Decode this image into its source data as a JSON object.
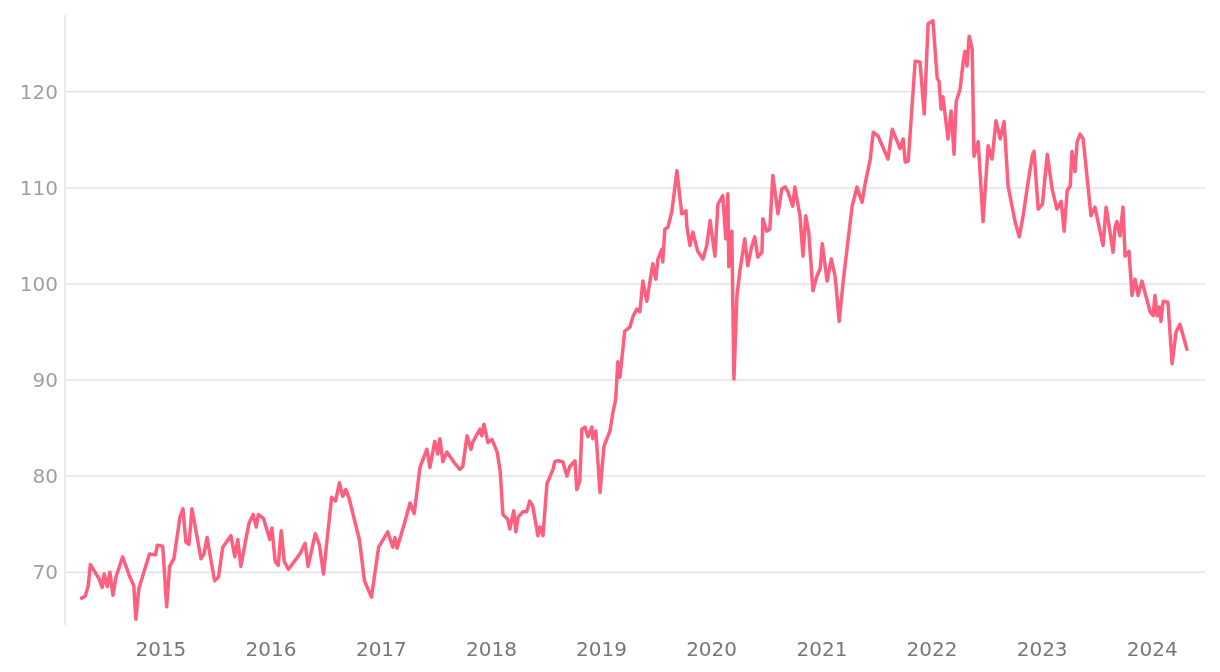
{
  "chart_data": {
    "type": "line",
    "xlim": [
      "2014-02-17",
      "2024-06-24"
    ],
    "xticks": [
      "2015",
      "2016",
      "2017",
      "2018",
      "2019",
      "2020",
      "2021",
      "2022",
      "2023",
      "2024"
    ],
    "ylim": [
      64.5,
      128
    ],
    "yticks": [
      70,
      80,
      90,
      100,
      110,
      120
    ],
    "grid": "y",
    "series": [
      {
        "color": "#ff5f7e",
        "x": [
          "2014-04-13",
          "2014-04-25",
          "2014-05-05",
          "2014-05-12",
          "2014-06-10",
          "2014-06-20",
          "2014-06-27",
          "2014-07-07",
          "2014-07-16",
          "2014-07-26",
          "2014-08-05",
          "2014-08-27",
          "2014-09-20",
          "2014-10-03",
          "2014-10-10",
          "2014-10-20",
          "2014-11-24",
          "2014-12-14",
          "2014-12-20",
          "2015-01-07",
          "2015-01-20",
          "2015-01-30",
          "2015-02-13",
          "2015-03-05",
          "2015-03-15",
          "2015-03-25",
          "2015-04-04",
          "2015-04-14",
          "2015-05-14",
          "2015-05-24",
          "2015-06-03",
          "2015-06-28",
          "2015-07-11",
          "2015-07-25",
          "2015-08-21",
          "2015-09-03",
          "2015-09-13",
          "2015-09-23",
          "2015-10-20",
          "2015-11-03",
          "2015-11-13",
          "2015-11-20",
          "2015-12-07",
          "2015-12-28",
          "2016-01-04",
          "2016-01-15",
          "2016-01-25",
          "2016-02-04",
          "2016-02-14",
          "2016-02-28",
          "2016-04-06",
          "2016-04-23",
          "2016-05-03",
          "2016-05-27",
          "2016-06-09",
          "2016-06-23",
          "2016-07-20",
          "2016-08-02",
          "2016-08-15",
          "2016-08-26",
          "2016-09-05",
          "2016-09-15",
          "2016-10-20",
          "2016-11-06",
          "2016-11-29",
          "2016-12-23",
          "2017-01-22",
          "2017-02-08",
          "2017-02-15",
          "2017-02-22",
          "2017-03-17",
          "2017-04-06",
          "2017-04-20",
          "2017-05-09",
          "2017-06-01",
          "2017-06-11",
          "2017-06-27",
          "2017-07-07",
          "2017-07-14",
          "2017-07-24",
          "2017-08-06",
          "2017-09-02",
          "2017-09-18",
          "2017-09-28",
          "2017-10-12",
          "2017-10-25",
          "2017-11-01",
          "2017-11-24",
          "2017-11-30",
          "2017-12-07",
          "2017-12-20",
          "2018-01-03",
          "2018-01-20",
          "2018-01-30",
          "2018-02-08",
          "2018-02-24",
          "2018-03-03",
          "2018-03-16",
          "2018-03-23",
          "2018-03-30",
          "2018-04-15",
          "2018-04-28",
          "2018-05-08",
          "2018-05-18",
          "2018-06-04",
          "2018-06-11",
          "2018-06-21",
          "2018-07-04",
          "2018-07-24",
          "2018-07-30",
          "2018-08-09",
          "2018-08-26",
          "2018-09-08",
          "2018-09-18",
          "2018-10-05",
          "2018-10-11",
          "2018-10-21",
          "2018-10-28",
          "2018-11-07",
          "2018-11-17",
          "2018-11-30",
          "2018-12-03",
          "2018-12-13",
          "2018-12-27",
          "2019-01-09",
          "2019-01-29",
          "2019-02-07",
          "2019-02-17",
          "2019-02-24",
          "2019-03-03",
          "2019-03-19",
          "2019-04-05",
          "2019-04-15",
          "2019-04-28",
          "2019-05-08",
          "2019-05-18",
          "2019-05-31",
          "2019-06-20",
          "2019-06-30",
          "2019-07-07",
          "2019-07-20",
          "2019-07-23",
          "2019-07-30",
          "2019-08-09",
          "2019-08-22",
          "2019-09-08",
          "2019-09-24",
          "2019-10-08",
          "2019-10-11",
          "2019-10-21",
          "2019-10-31",
          "2019-11-16",
          "2019-12-03",
          "2019-12-16",
          "2019-12-27",
          "2020-01-12",
          "2020-01-22",
          "2020-02-07",
          "2020-02-17",
          "2020-02-24",
          "2020-02-27",
          "2020-03-08",
          "2020-03-15",
          "2020-03-25",
          "2020-04-04",
          "2020-04-20",
          "2020-04-30",
          "2020-05-13",
          "2020-05-23",
          "2020-06-02",
          "2020-06-16",
          "2020-06-19",
          "2020-07-02",
          "2020-07-12",
          "2020-07-22",
          "2020-08-08",
          "2020-08-21",
          "2020-09-01",
          "2020-09-10",
          "2020-09-26",
          "2020-10-03",
          "2020-10-20",
          "2020-10-30",
          "2020-11-08",
          "2020-11-18",
          "2020-12-02",
          "2020-12-15",
          "2020-12-26",
          "2021-01-02",
          "2021-01-18",
          "2021-02-01",
          "2021-02-14",
          "2021-02-27",
          "2021-03-12",
          "2021-03-29",
          "2021-04-11",
          "2021-04-27",
          "2021-05-14",
          "2021-05-24",
          "2021-06-10",
          "2021-06-20",
          "2021-07-06",
          "2021-08-08",
          "2021-08-22",
          "2021-09-17",
          "2021-09-27",
          "2021-10-04",
          "2021-10-14",
          "2021-11-06",
          "2021-11-22",
          "2021-12-06",
          "2021-12-19",
          "2022-01-04",
          "2022-01-18",
          "2022-01-24",
          "2022-01-31",
          "2022-02-06",
          "2022-02-23",
          "2022-03-05",
          "2022-03-15",
          "2022-03-22",
          "2022-04-04",
          "2022-04-14",
          "2022-04-20",
          "2022-04-27",
          "2022-05-04",
          "2022-05-14",
          "2022-05-20",
          "2022-06-03",
          "2022-06-19",
          "2022-07-06",
          "2022-07-19",
          "2022-08-01",
          "2022-08-15",
          "2022-08-28",
          "2022-09-10",
          "2022-10-03",
          "2022-10-17",
          "2022-10-30",
          "2022-11-12",
          "2022-11-29",
          "2022-12-05",
          "2022-12-19",
          "2023-01-02",
          "2023-01-18",
          "2023-02-03",
          "2023-02-19",
          "2023-03-05",
          "2023-03-15",
          "2023-03-25",
          "2023-04-04",
          "2023-04-10",
          "2023-04-20",
          "2023-04-27",
          "2023-05-07",
          "2023-05-17",
          "2023-06-12",
          "2023-06-25",
          "2023-07-22",
          "2023-08-01",
          "2023-08-14",
          "2023-08-24",
          "2023-08-31",
          "2023-09-06",
          "2023-09-16",
          "2023-09-26",
          "2023-10-03",
          "2023-10-16",
          "2023-10-26",
          "2023-11-05",
          "2023-11-15",
          "2023-11-28",
          "2023-12-25",
          "2024-01-04",
          "2024-01-10",
          "2024-01-17",
          "2024-01-24",
          "2024-01-30",
          "2024-02-06",
          "2024-02-22",
          "2024-03-07",
          "2024-03-20",
          "2024-04-02",
          "2024-04-25"
        ],
        "values": [
          67.3,
          67.5,
          68.6,
          70.8,
          69.3,
          68.4,
          69.8,
          68.5,
          70.0,
          67.6,
          69.5,
          71.6,
          69.5,
          68.6,
          65.1,
          68.3,
          71.9,
          71.8,
          72.8,
          72.7,
          66.4,
          70.6,
          71.4,
          75.7,
          76.6,
          73.1,
          72.9,
          76.6,
          71.4,
          71.9,
          73.6,
          69.1,
          69.5,
          72.6,
          73.8,
          71.6,
          73.4,
          70.6,
          75.1,
          76.0,
          74.7,
          76.0,
          75.6,
          73.4,
          74.6,
          71.1,
          70.7,
          74.3,
          71.1,
          70.3,
          71.9,
          73.0,
          70.6,
          74.0,
          72.9,
          69.8,
          77.8,
          77.4,
          79.3,
          77.9,
          78.6,
          77.8,
          73.4,
          69.1,
          67.4,
          72.6,
          74.2,
          72.6,
          73.6,
          72.5,
          74.9,
          77.2,
          76.1,
          80.9,
          82.8,
          80.9,
          83.6,
          82.3,
          83.9,
          81.5,
          82.5,
          81.3,
          80.7,
          81.0,
          84.2,
          82.8,
          83.6,
          84.9,
          84.2,
          85.4,
          83.5,
          83.8,
          82.5,
          80.5,
          76.0,
          75.5,
          74.5,
          76.4,
          74.2,
          75.7,
          76.3,
          76.3,
          77.4,
          76.9,
          73.8,
          74.7,
          73.8,
          79.2,
          80.7,
          81.5,
          81.6,
          81.5,
          80.0,
          81.0,
          81.6,
          78.6,
          79.5,
          84.9,
          85.1,
          84.1,
          85.1,
          83.9,
          84.7,
          78.3,
          83.1,
          84.7,
          86.5,
          88.0,
          91.9,
          90.3,
          95.1,
          95.5,
          96.6,
          97.4,
          97.1,
          100.3,
          98.2,
          102.1,
          100.5,
          102.6,
          103.6,
          102.3,
          105.7,
          105.9,
          107.5,
          111.8,
          107.3,
          107.6,
          106.0,
          104.0,
          105.4,
          103.4,
          102.6,
          104.0,
          106.6,
          102.9,
          108.3,
          109.2,
          104.7,
          109.4,
          101.8,
          105.5,
          90.1,
          98.8,
          101.4,
          104.7,
          101.9,
          103.9,
          104.9,
          102.8,
          103.3,
          106.8,
          105.5,
          105.7,
          111.3,
          107.3,
          109.9,
          110.1,
          109.6,
          108.1,
          110.1,
          107.1,
          102.9,
          107.1,
          105.4,
          99.3,
          100.8,
          101.6,
          104.2,
          100.3,
          102.6,
          100.7,
          96.1,
          100.2,
          104.7,
          108.1,
          110.1,
          108.5,
          110.4,
          113.0,
          115.8,
          115.4,
          113.0,
          116.1,
          114.1,
          115.1,
          112.7,
          112.8,
          123.2,
          123.1,
          117.7,
          127.1,
          127.4,
          121.4,
          121.1,
          118.2,
          119.5,
          115.1,
          118.0,
          113.5,
          119.0,
          120.3,
          123.1,
          124.2,
          122.7,
          125.8,
          124.5,
          113.3,
          114.8,
          106.5,
          114.4,
          113.0,
          117.0,
          115.1,
          116.9,
          110.2,
          106.5,
          104.9,
          107.1,
          109.9,
          113.3,
          113.8,
          107.8,
          108.3,
          113.5,
          109.9,
          107.8,
          108.6,
          105.5,
          109.7,
          110.2,
          113.8,
          111.7,
          114.8,
          115.6,
          115.1,
          107.1,
          108.0,
          104.0,
          108.0,
          105.4,
          103.3,
          106.0,
          106.5,
          105.0,
          108.0,
          102.9,
          103.4,
          98.8,
          100.5,
          98.8,
          100.3,
          97.1,
          96.7,
          98.8,
          96.7,
          97.6,
          96.1,
          98.2,
          98.1,
          91.7,
          95.0,
          95.8,
          93.2
        ]
      }
    ]
  }
}
